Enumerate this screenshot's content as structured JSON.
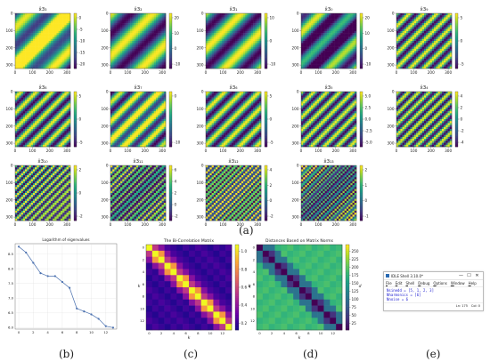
{
  "panel_labels": [
    "(a)",
    "(b)",
    "(c)",
    "(d)",
    "(e)"
  ],
  "colors": {
    "viridis": [
      "#440154",
      "#482878",
      "#3e4989",
      "#31688e",
      "#26828e",
      "#1f9e89",
      "#35b779",
      "#6ece58",
      "#b5de2b",
      "#fde725"
    ],
    "line": "#4c72b0"
  },
  "chart_data": [
    {
      "type": "heatmap",
      "title": "x̂3₃",
      "xticks": [
        "0",
        "100",
        "200",
        "300"
      ],
      "yticks": [
        "0",
        "100",
        "200",
        "300"
      ],
      "diag_period": 230,
      "phase": 0.3,
      "offset": 0.6,
      "colorbar_ticks": [
        "0",
        "-5",
        "-10",
        "-15",
        "-20"
      ],
      "vmin": -23,
      "vmax": 2
    },
    {
      "type": "heatmap",
      "title": "x̂3₂",
      "xticks": [
        "0",
        "100",
        "200",
        "300"
      ],
      "yticks": [
        "0",
        "100",
        "200",
        "300"
      ],
      "diag_period": 250,
      "phase": 1.8,
      "offset": 0,
      "colorbar_ticks": [
        "20",
        "10",
        "0",
        "-10"
      ],
      "vmin": -15,
      "vmax": 24
    },
    {
      "type": "heatmap",
      "title": "x̂3₁",
      "xticks": [
        "0",
        "100",
        "200",
        "300"
      ],
      "yticks": [
        "0",
        "100",
        "200",
        "300"
      ],
      "diag_period": 220,
      "phase": 3.2,
      "offset": 0,
      "colorbar_ticks": [
        "10",
        "0",
        "-10"
      ],
      "vmin": -15,
      "vmax": 15
    },
    {
      "type": "heatmap",
      "title": "x̂3₀",
      "xticks": [
        "0",
        "100",
        "200",
        "300"
      ],
      "yticks": [
        "0",
        "100",
        "200",
        "300"
      ],
      "diag_period": 180,
      "phase": 0.8,
      "offset": -0.5,
      "colorbar_ticks": [
        "20",
        "10",
        "0",
        "-10"
      ],
      "vmin": -12,
      "vmax": 25
    },
    {
      "type": "heatmap",
      "title": "x̂3₉",
      "xticks": [
        "0",
        "100",
        "200",
        "300"
      ],
      "yticks": [
        "0",
        "100",
        "200",
        "300"
      ],
      "diag_period": 80,
      "phase": 0.2,
      "offset": 0,
      "colorbar_ticks": [
        "5",
        "0",
        "-5"
      ],
      "vmin": -7,
      "vmax": 7
    },
    {
      "type": "heatmap",
      "title": "x̂3₈",
      "xticks": [
        "0",
        "100",
        "200",
        "300"
      ],
      "yticks": [
        "0",
        "100",
        "200",
        "300"
      ],
      "diag_period": 90,
      "phase": 1.0,
      "offset": 0,
      "colorbar_ticks": [
        "5",
        "0",
        "-5"
      ],
      "vmin": -7,
      "vmax": 7
    },
    {
      "type": "heatmap",
      "title": "x̂3₇",
      "xticks": [
        "0",
        "100",
        "200",
        "300"
      ],
      "yticks": [
        "0",
        "100",
        "200",
        "300"
      ],
      "diag_period": 110,
      "phase": 2.0,
      "offset": 0.3,
      "colorbar_ticks": [
        "0",
        "-10"
      ],
      "vmin": -15,
      "vmax": 7
    },
    {
      "type": "heatmap",
      "title": "x̂3₆",
      "xticks": [
        "0",
        "100",
        "200",
        "300"
      ],
      "yticks": [
        "0",
        "100",
        "200",
        "300"
      ],
      "diag_period": 100,
      "phase": 0.5,
      "offset": 0,
      "colorbar_ticks": [
        "5",
        "0",
        "-5"
      ],
      "vmin": -7,
      "vmax": 7
    },
    {
      "type": "heatmap",
      "title": "x̂3₅",
      "xticks": [
        "0",
        "100",
        "200",
        "300"
      ],
      "yticks": [
        "0",
        "100",
        "200",
        "300"
      ],
      "diag_period": 75,
      "phase": 1.5,
      "offset": 0,
      "colorbar_ticks": [
        "5.0",
        "2.5",
        "0.0",
        "-2.5",
        "-5.0"
      ],
      "vmin": -6,
      "vmax": 6
    },
    {
      "type": "heatmap",
      "title": "x̂3₄",
      "xticks": [
        "0",
        "100",
        "200",
        "300"
      ],
      "yticks": [
        "0",
        "100",
        "200",
        "300"
      ],
      "diag_period": 60,
      "phase": 0.7,
      "offset": 0,
      "colorbar_ticks": [
        "4",
        "2",
        "0",
        "-2",
        "-4"
      ],
      "vmin": -4.5,
      "vmax": 4.5
    },
    {
      "type": "heatmap",
      "title": "x̂3₁₀",
      "xticks": [
        "0",
        "100",
        "200",
        "300"
      ],
      "yticks": [
        "0",
        "100",
        "200",
        "300"
      ],
      "diag_period": 45,
      "phase": 0.3,
      "offset": 0,
      "colorbar_ticks": [
        "2",
        "0",
        "-2"
      ],
      "vmin": -3,
      "vmax": 3
    },
    {
      "type": "heatmap",
      "title": "x̂3₁₁",
      "xticks": [
        "0",
        "100",
        "200",
        "300"
      ],
      "yticks": [
        "0",
        "100",
        "200",
        "300"
      ],
      "diag_period": 38,
      "phase": 1.1,
      "offset": -0.3,
      "colorbar_ticks": [
        "6",
        "4",
        "2",
        "0",
        "-2"
      ],
      "vmin": -3,
      "vmax": 7
    },
    {
      "type": "heatmap",
      "title": "x̂3₁₂",
      "xticks": [
        "0",
        "100",
        "200",
        "300"
      ],
      "yticks": [
        "0",
        "100",
        "200",
        "300"
      ],
      "diag_period": 33,
      "phase": 2.1,
      "offset": 0,
      "colorbar_ticks": [
        "4",
        "2",
        "0",
        "-2"
      ],
      "vmin": -3,
      "vmax": 5
    },
    {
      "type": "heatmap",
      "title": "x̂3₁₃",
      "xticks": [
        "0",
        "100",
        "200",
        "300"
      ],
      "yticks": [
        "0",
        "100",
        "200",
        "300"
      ],
      "diag_period": 28,
      "phase": 0.9,
      "offset": -0.4,
      "colorbar_ticks": [
        "2",
        "1",
        "0",
        "-1"
      ],
      "vmin": -1.5,
      "vmax": 2.2
    },
    {
      "type": "line",
      "title": "Logarithm of eigenvalues",
      "x": [
        0,
        1,
        2,
        3,
        4,
        5,
        6,
        7,
        8,
        9,
        10,
        11,
        12,
        13
      ],
      "values": [
        8.75,
        8.55,
        8.2,
        7.85,
        7.75,
        7.75,
        7.55,
        7.35,
        6.65,
        6.55,
        6.45,
        6.3,
        6.05,
        6.0
      ],
      "ylim": [
        5.95,
        8.85
      ],
      "xticks": [
        "0",
        "2",
        "4",
        "6",
        "8",
        "10",
        "12"
      ],
      "yticks": [
        "6.0",
        "6.5",
        "7.0",
        "7.5",
        "8.0",
        "8.5"
      ],
      "grid": true
    },
    {
      "type": "heatmap",
      "title": "The Bi-Correlation Matrix",
      "xticks": [
        "0",
        "2",
        "4",
        "6",
        "8",
        "10",
        "12"
      ],
      "yticks": [
        "0",
        "2",
        "4",
        "6",
        "8",
        "10",
        "12"
      ],
      "xlabel": "k",
      "ylabel": "k",
      "n": 14,
      "vmin": 0,
      "vmax": 1,
      "colorbar_ticks": [
        "1.0",
        "0.8",
        "0.6",
        "0.4",
        "0.2"
      ],
      "colorbar_label": "q"
    },
    {
      "type": "heatmap",
      "title": "Distances Based on Matrix Norms",
      "xticks": [
        "0",
        "2",
        "4",
        "6",
        "8",
        "10",
        "12"
      ],
      "yticks": [
        "0",
        "2",
        "4",
        "6",
        "8",
        "10",
        "12"
      ],
      "xlabel": "k",
      "ylabel": "k",
      "n": 14,
      "vmin": 0,
      "vmax": 250,
      "colorbar_ticks": [
        "250",
        "225",
        "200",
        "175",
        "150",
        "125",
        "100",
        "75",
        "50",
        "25"
      ],
      "colorbar_label": "d"
    }
  ],
  "idle_window": {
    "title": "IDLE Shell 3.10.0*",
    "minimize": "—",
    "maximize": "☐",
    "close": "✕",
    "menu": [
      "File",
      "Edit",
      "Shell",
      "Debug",
      "Options",
      "Window",
      "Help"
    ],
    "lines": [
      "Nsinedd = [5, 1, 2, 3]",
      "Nharmonics = [6]",
      "Nnoise = 6"
    ],
    "status_line": "Ln: 175",
    "status_col": "Col: 0"
  }
}
